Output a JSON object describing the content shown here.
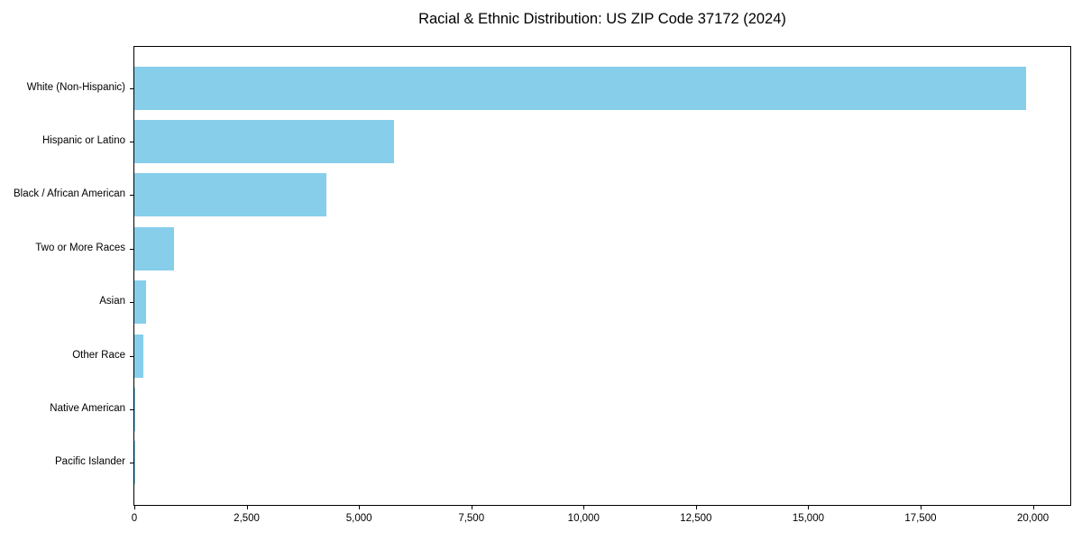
{
  "chart_data": {
    "type": "bar",
    "orientation": "horizontal",
    "title": "Racial & Ethnic Distribution: US ZIP Code 37172 (2024)",
    "categories": [
      "White (Non-Hispanic)",
      "Hispanic or Latino",
      "Black / African American",
      "Two or More Races",
      "Asian",
      "Other Race",
      "Native American",
      "Pacific Islander"
    ],
    "values": [
      19840,
      5780,
      4280,
      885,
      255,
      207,
      30,
      10
    ],
    "xlabel": "",
    "ylabel": "",
    "xlim": [
      0,
      20832
    ],
    "x_ticks": [
      0,
      2500,
      5000,
      7500,
      10000,
      12500,
      15000,
      17500,
      20000
    ],
    "x_tick_labels": [
      "0",
      "2,500",
      "5,000",
      "7,500",
      "10,000",
      "12,500",
      "15,000",
      "17,500",
      "20,000"
    ],
    "bar_color": "#87CEEB",
    "background_color": "#ffffff",
    "axis_color": "#000000",
    "grid": false,
    "legend": null
  }
}
